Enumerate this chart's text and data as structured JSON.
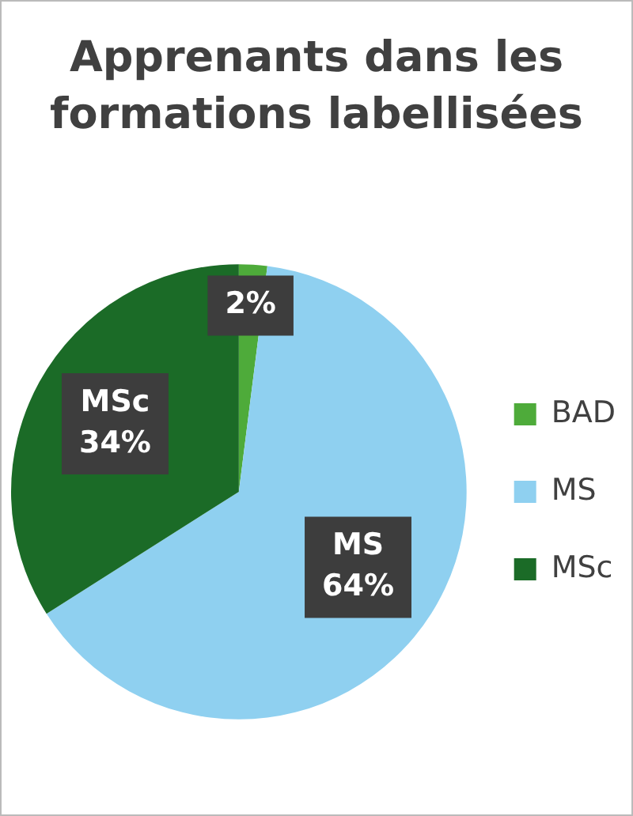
{
  "chart_data": {
    "type": "pie",
    "title": "Apprenants dans les formations labellisées",
    "categories": [
      "BAD",
      "MS",
      "MSc"
    ],
    "values": [
      2,
      64,
      34
    ],
    "colors": [
      "#4eab3a",
      "#8fd0f0",
      "#1b6b27"
    ],
    "value_labels": [
      "2%",
      "MS\n64%",
      "MSc\n34%"
    ],
    "legend": "right"
  }
}
